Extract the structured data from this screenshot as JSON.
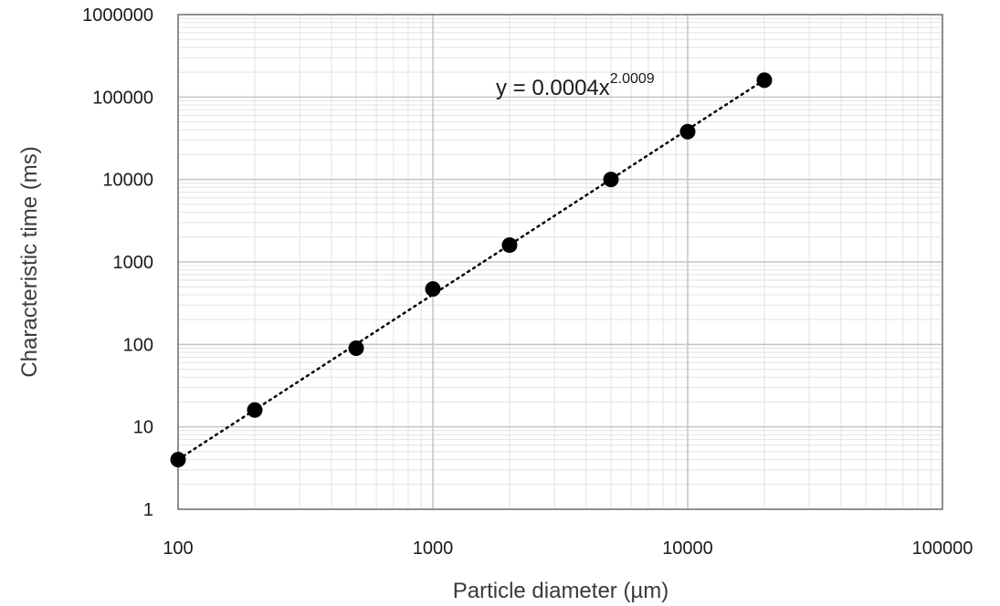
{
  "chart_data": {
    "type": "scatter",
    "x_scale": "log",
    "y_scale": "log",
    "xlim": [
      100,
      100000
    ],
    "ylim": [
      1,
      1000000
    ],
    "x_ticks": [
      "100",
      "1000",
      "10000",
      "100000"
    ],
    "y_ticks": [
      "1",
      "10",
      "100",
      "1000",
      "10000",
      "100000",
      "1000000"
    ],
    "xlabel": "Particle diameter (µm)",
    "ylabel": "Characteristic time (ms)",
    "grid": true,
    "series": [
      {
        "x": [
          100,
          200,
          500,
          1000,
          2000,
          5000,
          10000,
          20000
        ],
        "y": [
          4,
          16,
          90,
          470,
          1600,
          10000,
          38000,
          160000
        ],
        "marker_color": "#000000"
      }
    ],
    "trendline": {
      "type": "power",
      "coefficient": 0.0004,
      "exponent": 2.0009,
      "equation_prefix": "y = 0.0004x",
      "equation_exponent": "2.0009",
      "line_color": "#000000"
    }
  }
}
